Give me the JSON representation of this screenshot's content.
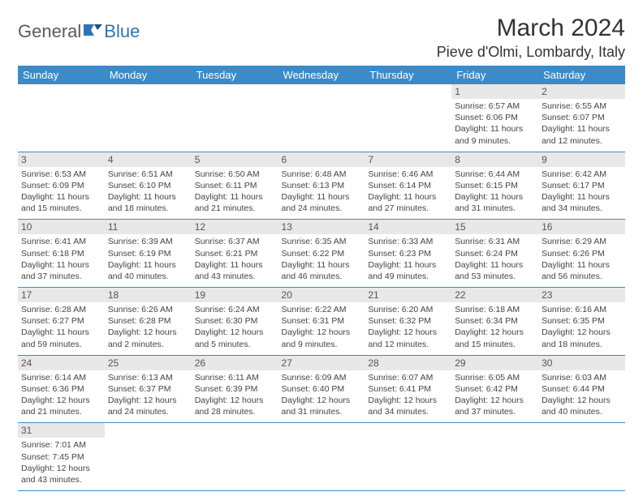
{
  "logo": {
    "text1": "General",
    "text2": "Blue"
  },
  "title": "March 2024",
  "location": "Pieve d'Olmi, Lombardy, Italy",
  "colors": {
    "header_bg": "#3b8bc9",
    "header_text": "#ffffff",
    "daynum_bg": "#e8e8e8",
    "row_border": "#3b8bc9",
    "logo_gray": "#5a5a5a",
    "logo_blue": "#2e74b5"
  },
  "day_headers": [
    "Sunday",
    "Monday",
    "Tuesday",
    "Wednesday",
    "Thursday",
    "Friday",
    "Saturday"
  ],
  "weeks": [
    [
      {
        "n": "",
        "sr": "",
        "ss": "",
        "dl": ""
      },
      {
        "n": "",
        "sr": "",
        "ss": "",
        "dl": ""
      },
      {
        "n": "",
        "sr": "",
        "ss": "",
        "dl": ""
      },
      {
        "n": "",
        "sr": "",
        "ss": "",
        "dl": ""
      },
      {
        "n": "",
        "sr": "",
        "ss": "",
        "dl": ""
      },
      {
        "n": "1",
        "sr": "Sunrise: 6:57 AM",
        "ss": "Sunset: 6:06 PM",
        "dl": "Daylight: 11 hours and 9 minutes."
      },
      {
        "n": "2",
        "sr": "Sunrise: 6:55 AM",
        "ss": "Sunset: 6:07 PM",
        "dl": "Daylight: 11 hours and 12 minutes."
      }
    ],
    [
      {
        "n": "3",
        "sr": "Sunrise: 6:53 AM",
        "ss": "Sunset: 6:09 PM",
        "dl": "Daylight: 11 hours and 15 minutes."
      },
      {
        "n": "4",
        "sr": "Sunrise: 6:51 AM",
        "ss": "Sunset: 6:10 PM",
        "dl": "Daylight: 11 hours and 18 minutes."
      },
      {
        "n": "5",
        "sr": "Sunrise: 6:50 AM",
        "ss": "Sunset: 6:11 PM",
        "dl": "Daylight: 11 hours and 21 minutes."
      },
      {
        "n": "6",
        "sr": "Sunrise: 6:48 AM",
        "ss": "Sunset: 6:13 PM",
        "dl": "Daylight: 11 hours and 24 minutes."
      },
      {
        "n": "7",
        "sr": "Sunrise: 6:46 AM",
        "ss": "Sunset: 6:14 PM",
        "dl": "Daylight: 11 hours and 27 minutes."
      },
      {
        "n": "8",
        "sr": "Sunrise: 6:44 AM",
        "ss": "Sunset: 6:15 PM",
        "dl": "Daylight: 11 hours and 31 minutes."
      },
      {
        "n": "9",
        "sr": "Sunrise: 6:42 AM",
        "ss": "Sunset: 6:17 PM",
        "dl": "Daylight: 11 hours and 34 minutes."
      }
    ],
    [
      {
        "n": "10",
        "sr": "Sunrise: 6:41 AM",
        "ss": "Sunset: 6:18 PM",
        "dl": "Daylight: 11 hours and 37 minutes."
      },
      {
        "n": "11",
        "sr": "Sunrise: 6:39 AM",
        "ss": "Sunset: 6:19 PM",
        "dl": "Daylight: 11 hours and 40 minutes."
      },
      {
        "n": "12",
        "sr": "Sunrise: 6:37 AM",
        "ss": "Sunset: 6:21 PM",
        "dl": "Daylight: 11 hours and 43 minutes."
      },
      {
        "n": "13",
        "sr": "Sunrise: 6:35 AM",
        "ss": "Sunset: 6:22 PM",
        "dl": "Daylight: 11 hours and 46 minutes."
      },
      {
        "n": "14",
        "sr": "Sunrise: 6:33 AM",
        "ss": "Sunset: 6:23 PM",
        "dl": "Daylight: 11 hours and 49 minutes."
      },
      {
        "n": "15",
        "sr": "Sunrise: 6:31 AM",
        "ss": "Sunset: 6:24 PM",
        "dl": "Daylight: 11 hours and 53 minutes."
      },
      {
        "n": "16",
        "sr": "Sunrise: 6:29 AM",
        "ss": "Sunset: 6:26 PM",
        "dl": "Daylight: 11 hours and 56 minutes."
      }
    ],
    [
      {
        "n": "17",
        "sr": "Sunrise: 6:28 AM",
        "ss": "Sunset: 6:27 PM",
        "dl": "Daylight: 11 hours and 59 minutes."
      },
      {
        "n": "18",
        "sr": "Sunrise: 6:26 AM",
        "ss": "Sunset: 6:28 PM",
        "dl": "Daylight: 12 hours and 2 minutes."
      },
      {
        "n": "19",
        "sr": "Sunrise: 6:24 AM",
        "ss": "Sunset: 6:30 PM",
        "dl": "Daylight: 12 hours and 5 minutes."
      },
      {
        "n": "20",
        "sr": "Sunrise: 6:22 AM",
        "ss": "Sunset: 6:31 PM",
        "dl": "Daylight: 12 hours and 9 minutes."
      },
      {
        "n": "21",
        "sr": "Sunrise: 6:20 AM",
        "ss": "Sunset: 6:32 PM",
        "dl": "Daylight: 12 hours and 12 minutes."
      },
      {
        "n": "22",
        "sr": "Sunrise: 6:18 AM",
        "ss": "Sunset: 6:34 PM",
        "dl": "Daylight: 12 hours and 15 minutes."
      },
      {
        "n": "23",
        "sr": "Sunrise: 6:16 AM",
        "ss": "Sunset: 6:35 PM",
        "dl": "Daylight: 12 hours and 18 minutes."
      }
    ],
    [
      {
        "n": "24",
        "sr": "Sunrise: 6:14 AM",
        "ss": "Sunset: 6:36 PM",
        "dl": "Daylight: 12 hours and 21 minutes."
      },
      {
        "n": "25",
        "sr": "Sunrise: 6:13 AM",
        "ss": "Sunset: 6:37 PM",
        "dl": "Daylight: 12 hours and 24 minutes."
      },
      {
        "n": "26",
        "sr": "Sunrise: 6:11 AM",
        "ss": "Sunset: 6:39 PM",
        "dl": "Daylight: 12 hours and 28 minutes."
      },
      {
        "n": "27",
        "sr": "Sunrise: 6:09 AM",
        "ss": "Sunset: 6:40 PM",
        "dl": "Daylight: 12 hours and 31 minutes."
      },
      {
        "n": "28",
        "sr": "Sunrise: 6:07 AM",
        "ss": "Sunset: 6:41 PM",
        "dl": "Daylight: 12 hours and 34 minutes."
      },
      {
        "n": "29",
        "sr": "Sunrise: 6:05 AM",
        "ss": "Sunset: 6:42 PM",
        "dl": "Daylight: 12 hours and 37 minutes."
      },
      {
        "n": "30",
        "sr": "Sunrise: 6:03 AM",
        "ss": "Sunset: 6:44 PM",
        "dl": "Daylight: 12 hours and 40 minutes."
      }
    ],
    [
      {
        "n": "31",
        "sr": "Sunrise: 7:01 AM",
        "ss": "Sunset: 7:45 PM",
        "dl": "Daylight: 12 hours and 43 minutes."
      },
      {
        "n": "",
        "sr": "",
        "ss": "",
        "dl": ""
      },
      {
        "n": "",
        "sr": "",
        "ss": "",
        "dl": ""
      },
      {
        "n": "",
        "sr": "",
        "ss": "",
        "dl": ""
      },
      {
        "n": "",
        "sr": "",
        "ss": "",
        "dl": ""
      },
      {
        "n": "",
        "sr": "",
        "ss": "",
        "dl": ""
      },
      {
        "n": "",
        "sr": "",
        "ss": "",
        "dl": ""
      }
    ]
  ]
}
